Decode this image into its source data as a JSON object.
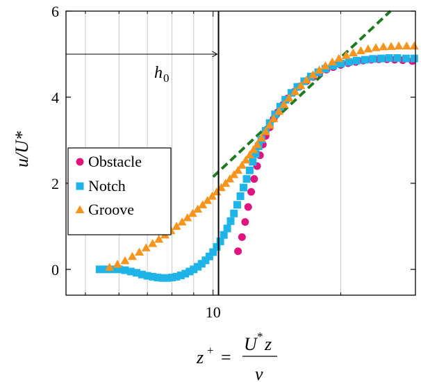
{
  "chart_data": {
    "type": "scatter",
    "xscale": "log",
    "xlim": [
      4.5,
      30
    ],
    "ylim": [
      -0.6,
      6
    ],
    "grid": "x-minor",
    "legend_position": "middle-left",
    "x_ticks": [
      {
        "value": 10,
        "label": "10"
      }
    ],
    "y_ticks": [
      {
        "value": 0,
        "label": "0"
      },
      {
        "value": 2,
        "label": "2"
      },
      {
        "value": 4,
        "label": "4"
      },
      {
        "value": 6,
        "label": "6"
      }
    ],
    "ylabel": "u/U*",
    "xlabel": {
      "lhs": "z",
      "lhs_sup": "+",
      "eq": "=",
      "numerator": "U",
      "numerator_sup": "*",
      "numerator_tail": "z",
      "denominator": "ν"
    },
    "annotation": {
      "text": "h",
      "sub": "0",
      "arrow_from_x": 4.5,
      "arrow_to_x": 10.3,
      "arrow_y": 5.0
    },
    "vline_x": 10.3,
    "reference_line": {
      "color": "#1e7a1e",
      "style": "dashed",
      "points": [
        [
          10,
          2.15
        ],
        [
          26.2,
          6.0
        ]
      ]
    },
    "series": [
      {
        "name": "Obstacle",
        "marker": "circle",
        "color": "#e0147f",
        "x": [
          11.45,
          11.7,
          11.9,
          12.1,
          12.3,
          12.5,
          12.7,
          12.9,
          13.1,
          13.3,
          13.6,
          13.9,
          14.2,
          14.6,
          15.0,
          15.5,
          16.0,
          16.6,
          17.2,
          17.8,
          18.5,
          19.2,
          20.0,
          20.8,
          21.7,
          22.6,
          23.6,
          24.6,
          25.7,
          26.8,
          28.0,
          29.5
        ],
        "y": [
          0.42,
          0.75,
          1.1,
          1.45,
          1.8,
          2.1,
          2.4,
          2.65,
          2.9,
          3.1,
          3.3,
          3.5,
          3.65,
          3.82,
          3.97,
          4.12,
          4.25,
          4.37,
          4.47,
          4.56,
          4.64,
          4.7,
          4.75,
          4.79,
          4.82,
          4.85,
          4.87,
          4.88,
          4.88,
          4.87,
          4.86,
          4.84
        ]
      },
      {
        "name": "Notch",
        "marker": "square",
        "color": "#1fb4e8",
        "x": [
          5.4,
          5.6,
          5.8,
          6.0,
          6.2,
          6.4,
          6.6,
          6.8,
          7.0,
          7.2,
          7.4,
          7.6,
          7.8,
          8.0,
          8.2,
          8.4,
          8.6,
          8.8,
          9.0,
          9.2,
          9.4,
          9.6,
          9.8,
          10.0,
          10.2,
          10.4,
          10.6,
          10.8,
          11.0,
          11.2,
          11.4,
          11.6,
          11.8,
          12.0,
          12.2,
          12.4,
          12.6,
          12.8,
          13.0,
          13.3,
          13.6,
          14.0,
          14.4,
          14.8,
          15.3,
          15.8,
          16.4,
          17.0,
          17.7,
          18.4,
          19.2,
          20.0,
          20.9,
          21.8,
          22.8,
          23.8,
          24.9,
          26.0,
          27.2,
          28.5,
          29.8
        ],
        "y": [
          0.0,
          0.0,
          0.0,
          0.0,
          -0.02,
          -0.05,
          -0.08,
          -0.12,
          -0.15,
          -0.17,
          -0.19,
          -0.2,
          -0.2,
          -0.19,
          -0.17,
          -0.14,
          -0.1,
          -0.05,
          0.0,
          0.06,
          0.13,
          0.21,
          0.3,
          0.4,
          0.52,
          0.65,
          0.8,
          0.95,
          1.12,
          1.3,
          1.5,
          1.7,
          1.9,
          2.1,
          2.3,
          2.5,
          2.68,
          2.86,
          3.02,
          3.22,
          3.4,
          3.6,
          3.78,
          3.94,
          4.1,
          4.24,
          4.37,
          4.48,
          4.58,
          4.66,
          4.73,
          4.78,
          4.82,
          4.85,
          4.87,
          4.89,
          4.9,
          4.91,
          4.91,
          4.9,
          4.9
        ]
      },
      {
        "name": "Groove",
        "marker": "triangle",
        "color": "#f7941d",
        "x": [
          5.7,
          5.95,
          6.2,
          6.45,
          6.7,
          6.95,
          7.2,
          7.45,
          7.7,
          7.95,
          8.2,
          8.45,
          8.7,
          8.95,
          9.2,
          9.45,
          9.7,
          9.95,
          10.2,
          10.45,
          10.7,
          10.95,
          11.2,
          11.45,
          11.7,
          11.95,
          12.2,
          12.45,
          12.7,
          13.0,
          13.3,
          13.6,
          13.9,
          14.3,
          14.7,
          15.1,
          15.6,
          16.1,
          16.6,
          17.2,
          17.8,
          18.4,
          19.1,
          19.8,
          20.6,
          21.4,
          22.3,
          23.2,
          24.2,
          25.2,
          26.3,
          27.4,
          28.6,
          29.8
        ],
        "y": [
          0.05,
          0.12,
          0.2,
          0.3,
          0.4,
          0.5,
          0.6,
          0.7,
          0.8,
          0.9,
          1.0,
          1.1,
          1.2,
          1.3,
          1.4,
          1.5,
          1.6,
          1.7,
          1.8,
          1.9,
          2.0,
          2.1,
          2.2,
          2.3,
          2.42,
          2.54,
          2.66,
          2.78,
          2.9,
          3.05,
          3.2,
          3.35,
          3.5,
          3.67,
          3.83,
          3.98,
          4.13,
          4.27,
          4.4,
          4.52,
          4.63,
          4.73,
          4.82,
          4.9,
          4.97,
          5.03,
          5.08,
          5.12,
          5.15,
          5.17,
          5.18,
          5.19,
          5.19,
          5.19
        ]
      }
    ]
  }
}
